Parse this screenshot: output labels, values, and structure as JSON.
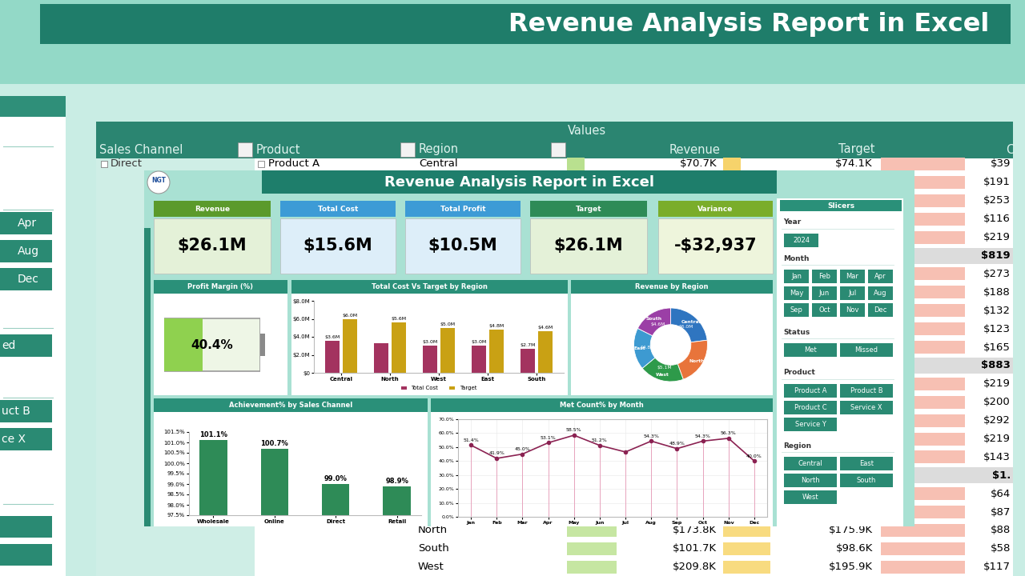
{
  "header": {
    "title": "Revenue Analysis Report in Excel"
  },
  "left_panel": {
    "buttons": [
      "Apr",
      "Aug",
      "Dec",
      "ed",
      "uct B",
      "ce X"
    ]
  },
  "pivot": {
    "values_header": "Values",
    "columns": [
      "Sales Channel",
      "Product",
      "Region",
      "Revenue",
      "Target",
      "C"
    ],
    "top_rows": [
      [
        "Direct",
        "Product A",
        "Central",
        "$70.7K",
        "$74.1K"
      ]
    ],
    "bottom_rows": [
      [
        "North",
        "$173.8K",
        "$175.9K"
      ],
      [
        "South",
        "$101.7K",
        "$98.6K"
      ],
      [
        "West",
        "$209.8K",
        "$195.9K"
      ]
    ],
    "last_column": [
      "$39",
      "$191",
      "$253",
      "$116",
      "$219",
      "$819",
      "$273",
      "$188",
      "$132",
      "$123",
      "$165",
      "$883",
      "$219",
      "$200",
      "$292",
      "$219",
      "$143",
      "$1.",
      "$64",
      "$87",
      "$88",
      "$58",
      "$117"
    ]
  },
  "dashboard": {
    "title": "Revenue Analysis Report in Excel",
    "logo": "NGT",
    "kpis": [
      {
        "label": "Revenue",
        "value": "$26.1M"
      },
      {
        "label": "Total Cost",
        "value": "$15.6M"
      },
      {
        "label": "Total Profit",
        "value": "$10.5M"
      },
      {
        "label": "Target",
        "value": "$26.1M"
      },
      {
        "label": "Variance",
        "value": "-$32,937"
      }
    ]
  },
  "chart_data": [
    {
      "type": "battery",
      "title": "Profit Margin (%)",
      "values": [
        40.4
      ],
      "value_labels": [
        "40.4%"
      ],
      "xlim": [
        0,
        100
      ],
      "color": "#8fd14f",
      "tick_labels": false,
      "data_labels": true
    },
    {
      "type": "bar",
      "title": "Total Cost Vs Target by Region",
      "categories": [
        "Central",
        "North",
        "West",
        "East",
        "South"
      ],
      "series": [
        {
          "name": "Total Cost",
          "color": "#a3335f",
          "values": [
            3600000,
            3300000,
            3000000,
            3000000,
            2700000
          ],
          "value_labels": [
            "$3.6M",
            null,
            "$3.0M",
            "$3.0M",
            "$2.7M"
          ]
        },
        {
          "name": "Target",
          "color": "#c9a114",
          "values": [
            6000000,
            5600000,
            5000000,
            4800000,
            4600000
          ],
          "value_labels": [
            "$6.0M",
            "$5.6M",
            "$5.0M",
            "$4.8M",
            "$4.6M"
          ]
        }
      ],
      "ylim": [
        0,
        8000000
      ],
      "yticks": [
        {
          "value": 0,
          "label": "$0"
        },
        {
          "value": 2000000,
          "label": "$2.0M"
        },
        {
          "value": 4000000,
          "label": "$4.0M"
        },
        {
          "value": 6000000,
          "label": "$6.0M"
        },
        {
          "value": 8000000,
          "label": "$8.0M"
        }
      ],
      "legend": "lower center",
      "data_labels": true
    },
    {
      "type": "donut",
      "title": "Revenue by Region",
      "categories": [
        "Central",
        "North",
        "West",
        "East",
        "South"
      ],
      "values": [
        6000000,
        5600000,
        5100000,
        4800000,
        4600000
      ],
      "value_labels": [
        "$6.0M",
        null,
        "$5.1M",
        "$4.8M",
        "$4.6M"
      ],
      "colors": [
        "#2f75c0",
        "#e8743b",
        "#2e9a4a",
        "#3d9ad1",
        "#9b3fa6"
      ],
      "data_labels": true
    },
    {
      "type": "bar",
      "title": "Achievement% by Sales Channel",
      "categories": [
        "Wholesale",
        "Online",
        "Direct",
        "Retail"
      ],
      "values": [
        101.1,
        100.7,
        99.0,
        98.9
      ],
      "value_labels": [
        "101.1%",
        "100.7%",
        "99.0%",
        "98.9%"
      ],
      "color": "#2e8b57",
      "ylim": [
        97.5,
        101.5
      ],
      "yticks": [
        {
          "value": 97.5,
          "label": "97.5%"
        },
        {
          "value": 98.0,
          "label": "98.0%"
        },
        {
          "value": 98.5,
          "label": "98.5%"
        },
        {
          "value": 99.0,
          "label": "99.0%"
        },
        {
          "value": 99.5,
          "label": "99.5%"
        },
        {
          "value": 100.0,
          "label": "100.0%"
        },
        {
          "value": 100.5,
          "label": "100.5%"
        },
        {
          "value": 101.0,
          "label": "101.0%"
        },
        {
          "value": 101.5,
          "label": "101.5%"
        }
      ],
      "data_labels": true
    },
    {
      "type": "line",
      "title": "Met Count% by Month",
      "categories": [
        "Jan",
        "Feb",
        "Mar",
        "Apr",
        "May",
        "Jun",
        "Jul",
        "Aug",
        "Sep",
        "Oct",
        "Nov",
        "Dec"
      ],
      "values": [
        51.4,
        41.9,
        45.0,
        53.1,
        58.5,
        51.2,
        46.5,
        54.3,
        48.9,
        54.3,
        56.3,
        40.0
      ],
      "value_labels": [
        "51.4%",
        "41.9%",
        "45.0%",
        "53.1%",
        "58.5%",
        "51.2%",
        null,
        "54.3%",
        "48.9%",
        "54.3%",
        "56.3%",
        "40.0%"
      ],
      "color": "#8b2252",
      "marker": "o",
      "ylim": [
        0,
        70
      ],
      "yticks": [
        {
          "value": 0,
          "label": "0.0%"
        },
        {
          "value": 10,
          "label": "10.0%"
        },
        {
          "value": 20,
          "label": "20.0%"
        },
        {
          "value": 30,
          "label": "30.0%"
        },
        {
          "value": 40,
          "label": "40.0%"
        },
        {
          "value": 50,
          "label": "50.0%"
        },
        {
          "value": 60,
          "label": "60.0%"
        },
        {
          "value": 70,
          "label": "70.0%"
        }
      ],
      "grid": true,
      "data_labels": true
    }
  ],
  "slicers": {
    "title": "Slicers",
    "groups": [
      {
        "name": "Year",
        "items": [
          "2024"
        ]
      },
      {
        "name": "Month",
        "items": [
          "Jan",
          "Feb",
          "Mar",
          "Apr",
          "May",
          "Jun",
          "Jul",
          "Aug",
          "Sep",
          "Oct",
          "Nov",
          "Dec"
        ]
      },
      {
        "name": "Status",
        "items": [
          "Met",
          "Missed"
        ]
      },
      {
        "name": "Product",
        "items": [
          "Product A",
          "Product B",
          "Product C",
          "Service X",
          "Service Y"
        ]
      },
      {
        "name": "Region",
        "items": [
          "Central",
          "East",
          "North",
          "South",
          "West"
        ]
      }
    ]
  }
}
